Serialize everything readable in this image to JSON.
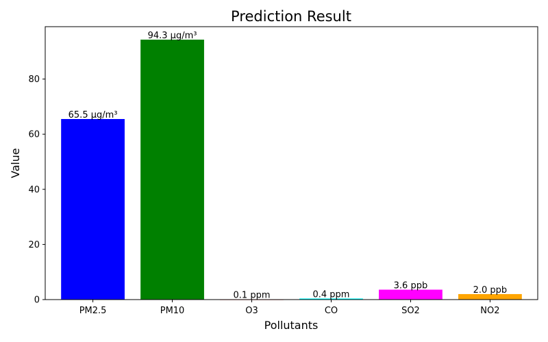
{
  "chart_data": {
    "type": "bar",
    "title": "Prediction Result",
    "xlabel": "Pollutants",
    "ylabel": "Value",
    "categories": [
      "PM2.5",
      "PM10",
      "O3",
      "CO",
      "SO2",
      "NO2"
    ],
    "values": [
      65.5,
      94.3,
      0.1,
      0.4,
      3.6,
      2.0
    ],
    "data_labels": [
      "65.5 μg/m³",
      "94.3 μg/m³",
      "0.1 ppm",
      "0.4 ppm",
      "3.6 ppb",
      "2.0 ppb"
    ],
    "colors": [
      "#0000ff",
      "#008000",
      "#ff0000",
      "#00ffff",
      "#ff00ff",
      "#ffa500"
    ],
    "ylim": [
      0,
      99
    ],
    "yticks": [
      0,
      20,
      40,
      60,
      80
    ],
    "grid": false,
    "legend": "none"
  }
}
